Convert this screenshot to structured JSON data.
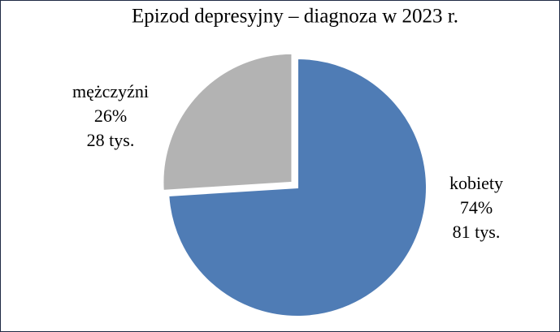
{
  "chart_data": {
    "type": "pie",
    "title": "Epizod depresyjny – diagnoza w 2023 r.",
    "categories": [
      "kobiety",
      "mężczyźni"
    ],
    "values": [
      74,
      26
    ],
    "value_labels": [
      "74%",
      "26%"
    ],
    "count_labels": [
      "81 tys.",
      "28 tys."
    ],
    "colors": [
      "#4f7cb5",
      "#b3b3b3"
    ],
    "explode": [
      false,
      true
    ]
  }
}
